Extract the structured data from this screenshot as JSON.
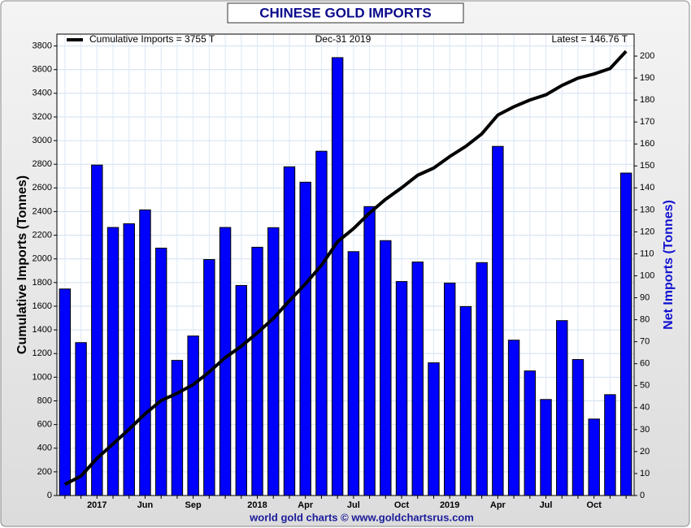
{
  "chart_data": {
    "type": "bar",
    "title": "CHINESE GOLD IMPORTS",
    "ylabel": "Cumulative Imports (Tonnes)",
    "y2label": "Net Imports (Tonnes)",
    "date_label": "Dec-31  2019",
    "latest_label": "Latest = 146.76 T",
    "footer": "world gold charts © www.goldchartsrus.com",
    "categories": [
      null,
      null,
      "2017",
      null,
      null,
      "Jun",
      null,
      null,
      "Sep",
      null,
      null,
      null,
      "2018",
      null,
      null,
      "Apr",
      null,
      null,
      "Jul",
      null,
      null,
      "Oct",
      null,
      null,
      "2019",
      null,
      null,
      "Apr",
      null,
      null,
      "Jul",
      null,
      null,
      "Oct",
      null,
      null
    ],
    "series": [
      {
        "name": "Net Imports",
        "type": "bar",
        "axis": "y2",
        "color": "#0000ff",
        "values": [
          94,
          69.6,
          150.4,
          122,
          123.7,
          130,
          112.6,
          61.5,
          72.6,
          107.4,
          122,
          95.6,
          113,
          121.9,
          149.6,
          142.6,
          156.7,
          199.3,
          111,
          131.5,
          116,
          97.4,
          106.3,
          60.4,
          96.7,
          86,
          106,
          158.9,
          70.7,
          56.7,
          43.7,
          79.6,
          61.9,
          34.8,
          45.9,
          146.76
        ]
      },
      {
        "name": "Cumulative Imports = 3755 T",
        "type": "line",
        "axis": "y",
        "color": "#000000",
        "values": [
          94,
          164,
          314,
          436,
          560,
          690,
          803,
          864,
          937,
          1044,
          1166,
          1262,
          1375,
          1497,
          1646,
          1789,
          1946,
          2145,
          2256,
          2388,
          2504,
          2601,
          2707,
          2768,
          2865,
          2951,
          3057,
          3216,
          3286,
          3343,
          3387,
          3466,
          3528,
          3563,
          3609,
          3755
        ]
      }
    ],
    "ylim": [
      0,
      3900
    ],
    "yticks": [
      0,
      200,
      400,
      600,
      800,
      1000,
      1200,
      1400,
      1600,
      1800,
      2000,
      2200,
      2400,
      2600,
      2800,
      3000,
      3200,
      3400,
      3600,
      3800
    ],
    "y2lim": [
      0,
      210
    ],
    "y2ticks": [
      0,
      10,
      20,
      30,
      40,
      50,
      60,
      70,
      80,
      90,
      100,
      110,
      120,
      130,
      140,
      150,
      160,
      170,
      180,
      190,
      200
    ],
    "grid": true
  }
}
